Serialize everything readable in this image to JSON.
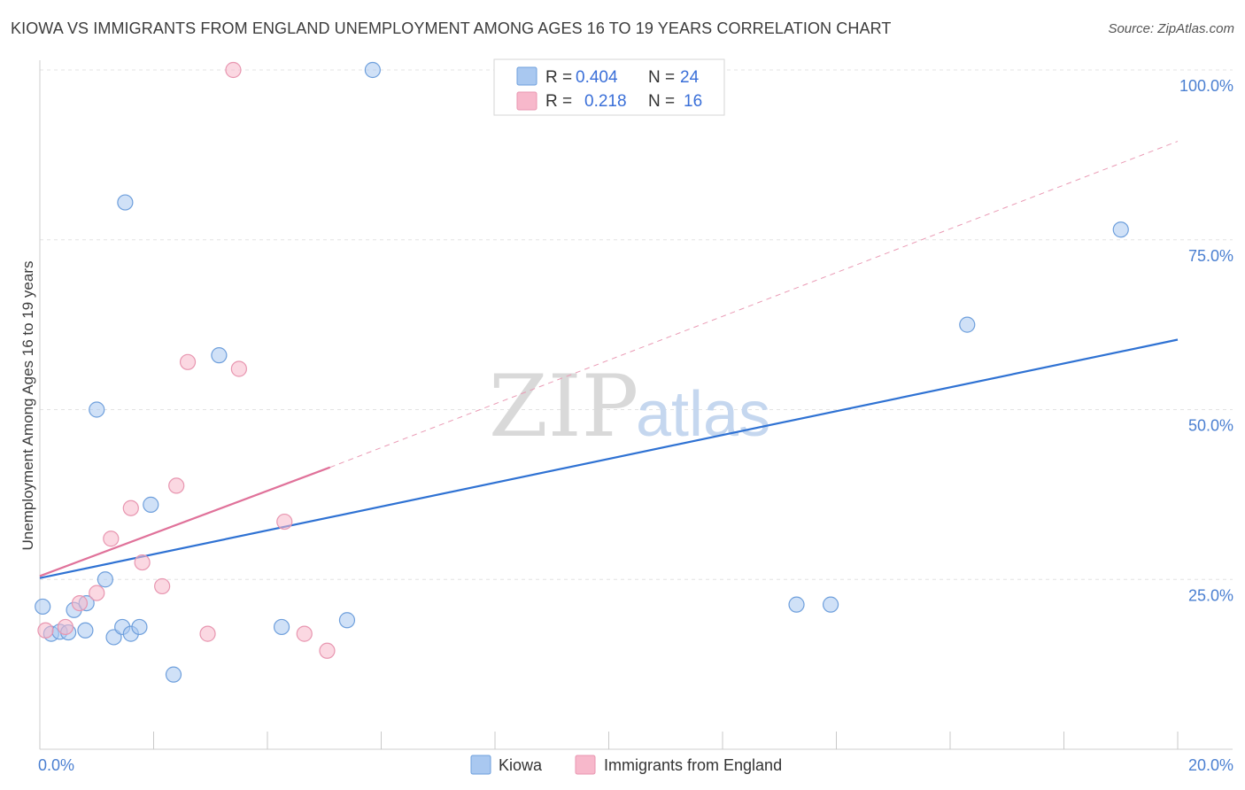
{
  "header": {
    "title": "KIOWA VS IMMIGRANTS FROM ENGLAND UNEMPLOYMENT AMONG AGES 16 TO 19 YEARS CORRELATION CHART",
    "source": "Source: ZipAtlas.com"
  },
  "watermark": {
    "zip": "ZIP",
    "atlas": "atlas"
  },
  "legend": {
    "r_label": "R =",
    "n_label": "N =",
    "rows": [
      {
        "series": "Kiowa",
        "r": "0.404",
        "n": "24",
        "color": "#a9c8f0"
      },
      {
        "series": "Immigrants from England",
        "r": "0.218",
        "n": "16",
        "color": "#f7b8cb"
      }
    ]
  },
  "chart_data": {
    "type": "scatter",
    "title": "KIOWA VS IMMIGRANTS FROM ENGLAND UNEMPLOYMENT AMONG AGES 16 TO 19 YEARS CORRELATION CHART",
    "xlabel": "",
    "ylabel": "Unemployment Among Ages 16 to 19 years",
    "xlim": [
      0,
      20
    ],
    "ylim": [
      0,
      100
    ],
    "x_tick_labels": [
      "0.0%",
      "20.0%"
    ],
    "y_ticks": [
      25,
      50,
      75,
      100
    ],
    "y_tick_labels": [
      "25.0%",
      "50.0%",
      "75.0%",
      "100.0%"
    ],
    "grid": true,
    "legend_position": "bottom-center",
    "series": [
      {
        "name": "Kiowa",
        "color": "#a9c8f0",
        "stroke": "#6e9fdc",
        "points": [
          {
            "x": 0.05,
            "y": 21.0
          },
          {
            "x": 0.2,
            "y": 17.0
          },
          {
            "x": 0.35,
            "y": 17.3
          },
          {
            "x": 0.5,
            "y": 17.2
          },
          {
            "x": 0.6,
            "y": 20.5
          },
          {
            "x": 0.8,
            "y": 17.5
          },
          {
            "x": 0.82,
            "y": 21.5
          },
          {
            "x": 1.0,
            "y": 50.0
          },
          {
            "x": 1.15,
            "y": 25.0
          },
          {
            "x": 1.3,
            "y": 16.5
          },
          {
            "x": 1.45,
            "y": 18.0
          },
          {
            "x": 1.5,
            "y": 80.5
          },
          {
            "x": 1.6,
            "y": 17.0
          },
          {
            "x": 1.75,
            "y": 18.0
          },
          {
            "x": 1.95,
            "y": 36.0
          },
          {
            "x": 2.35,
            "y": 11.0
          },
          {
            "x": 3.15,
            "y": 58.0
          },
          {
            "x": 4.25,
            "y": 18.0
          },
          {
            "x": 5.4,
            "y": 19.0
          },
          {
            "x": 5.85,
            "y": 100.0
          },
          {
            "x": 13.3,
            "y": 21.3
          },
          {
            "x": 13.9,
            "y": 21.3
          },
          {
            "x": 16.3,
            "y": 62.5
          },
          {
            "x": 19.0,
            "y": 76.5
          }
        ],
        "trend": {
          "x0": 0,
          "y0": 25.2,
          "x1": 20,
          "y1": 60.3,
          "style": "solid"
        }
      },
      {
        "name": "Immigrants from England",
        "color": "#f7b8cb",
        "stroke": "#e896b0",
        "points": [
          {
            "x": 0.1,
            "y": 17.5
          },
          {
            "x": 0.45,
            "y": 18.0
          },
          {
            "x": 0.7,
            "y": 21.5
          },
          {
            "x": 1.0,
            "y": 23.0
          },
          {
            "x": 1.25,
            "y": 31.0
          },
          {
            "x": 1.6,
            "y": 35.5
          },
          {
            "x": 1.8,
            "y": 27.5
          },
          {
            "x": 2.15,
            "y": 24.0
          },
          {
            "x": 2.4,
            "y": 38.8
          },
          {
            "x": 2.6,
            "y": 57.0
          },
          {
            "x": 2.95,
            "y": 17.0
          },
          {
            "x": 3.4,
            "y": 100.0
          },
          {
            "x": 3.5,
            "y": 56.0
          },
          {
            "x": 4.3,
            "y": 33.5
          },
          {
            "x": 4.65,
            "y": 17.0
          },
          {
            "x": 5.05,
            "y": 14.5
          }
        ],
        "trend": {
          "x0": 0,
          "y0": 25.5,
          "x1": 5.1,
          "y1": 41.5,
          "style": "solid",
          "extended": {
            "x1": 20,
            "y1": 89.5,
            "style": "dashed"
          }
        }
      }
    ]
  }
}
